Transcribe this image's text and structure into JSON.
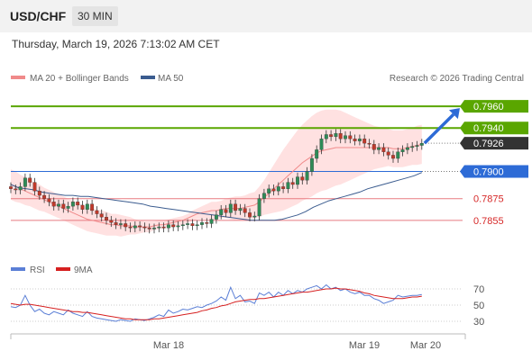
{
  "header": {
    "symbol": "USD/CHF",
    "timeframe": "30 MIN"
  },
  "datetime": "Thursday, March 19, 2026 7:13:02 AM CET",
  "legend": {
    "bb": "MA 20 + Bollinger Bands",
    "ma50": "MA 50",
    "source": "Research © 2026 Trading Central"
  },
  "rsi_legend": {
    "rsi": "RSI",
    "ma": "9MA"
  },
  "colors": {
    "resistance": "#5aa600",
    "support": "#e87a80",
    "pivot": "#2d6bd6",
    "current": "#333333",
    "bull": "#2e8b57",
    "bear": "#c0392b",
    "ma50": "#3b5c8f",
    "ma20": "#f08a8a",
    "band": "#ffd7d7",
    "rsi": "#5b7fd6",
    "rsi_ma": "#d62020"
  },
  "chart_data": {
    "type": "candlestick",
    "levels": [
      {
        "label": "0.7960",
        "value": 0.796,
        "role": "resistance"
      },
      {
        "label": "0.7940",
        "value": 0.794,
        "role": "resistance"
      },
      {
        "label": "0.7926",
        "value": 0.7926,
        "role": "current"
      },
      {
        "label": "0.7900",
        "value": 0.79,
        "role": "pivot"
      },
      {
        "label": "0.7875",
        "value": 0.7875,
        "role": "support"
      },
      {
        "label": "0.7855",
        "value": 0.7855,
        "role": "support"
      }
    ],
    "ylim": [
      0.783,
      0.7975
    ],
    "close": [
      0.7884,
      0.7883,
      0.7886,
      0.7894,
      0.789,
      0.7882,
      0.7878,
      0.7875,
      0.7872,
      0.7868,
      0.787,
      0.7866,
      0.7868,
      0.7872,
      0.7869,
      0.7865,
      0.787,
      0.7864,
      0.7861,
      0.7858,
      0.7855,
      0.7853,
      0.7851,
      0.7852,
      0.7849,
      0.7848,
      0.785,
      0.7849,
      0.7848,
      0.7847,
      0.7848,
      0.7849,
      0.7848,
      0.7851,
      0.7849,
      0.785,
      0.7851,
      0.7852,
      0.785,
      0.7851,
      0.7853,
      0.7852,
      0.7856,
      0.786,
      0.7865,
      0.7862,
      0.787,
      0.7864,
      0.7866,
      0.7862,
      0.7858,
      0.7859,
      0.7875,
      0.788,
      0.7884,
      0.7882,
      0.7886,
      0.7884,
      0.789,
      0.7888,
      0.7895,
      0.7892,
      0.79,
      0.7912,
      0.792,
      0.793,
      0.7934,
      0.7932,
      0.7935,
      0.793,
      0.7933,
      0.793,
      0.7928,
      0.793,
      0.7926,
      0.7925,
      0.792,
      0.7922,
      0.7918,
      0.7915,
      0.7912,
      0.7918,
      0.792,
      0.7922,
      0.7923,
      0.7924,
      0.7926
    ],
    "ma50": [
      0.7888,
      0.7885,
      0.7884,
      0.7883,
      0.7881,
      0.788,
      0.7879,
      0.7878,
      0.7878,
      0.7877,
      0.7877,
      0.7876,
      0.7875,
      0.7874,
      0.7873,
      0.7872,
      0.7871,
      0.787,
      0.7868,
      0.7867,
      0.7866,
      0.7865,
      0.7864,
      0.7863,
      0.7862,
      0.7861,
      0.786,
      0.7859,
      0.7858,
      0.7857,
      0.7856,
      0.7855,
      0.7855,
      0.7855,
      0.7855,
      0.7856,
      0.7858,
      0.786,
      0.7863,
      0.7867,
      0.787,
      0.7873,
      0.7875,
      0.7877,
      0.7879,
      0.7881,
      0.7884,
      0.7886,
      0.7888,
      0.789,
      0.7892,
      0.7894,
      0.7896,
      0.7899
    ],
    "ma50_start": 0,
    "ma20": [
      0.7888,
      0.7886,
      0.7884,
      0.7882,
      0.788,
      0.7878,
      0.7876,
      0.7874,
      0.7872,
      0.787,
      0.7868,
      0.7866,
      0.7864,
      0.7862,
      0.786,
      0.7858,
      0.7856,
      0.7855,
      0.7854,
      0.7853,
      0.7852,
      0.7851,
      0.7851,
      0.785,
      0.785,
      0.785,
      0.7849,
      0.7849,
      0.7849,
      0.7849,
      0.785,
      0.7851,
      0.7851,
      0.7852,
      0.7853,
      0.7854,
      0.7855,
      0.7857,
      0.7859,
      0.7861,
      0.7862,
      0.7863,
      0.7864,
      0.7864,
      0.7865,
      0.7866,
      0.7866,
      0.7866,
      0.7866,
      0.7867,
      0.7868,
      0.7869,
      0.7872,
      0.7876,
      0.788,
      0.7884,
      0.7888,
      0.7892,
      0.7896,
      0.79,
      0.7904,
      0.7908,
      0.7911,
      0.7914,
      0.7917,
      0.7919,
      0.792,
      0.7921,
      0.7922,
      0.7922,
      0.7922,
      0.7922,
      0.7922,
      0.7922,
      0.7922,
      0.7922,
      0.7922,
      0.7922,
      0.7922,
      0.7922,
      0.7921,
      0.7921,
      0.7921,
      0.7922,
      0.7923,
      0.7924,
      0.7925
    ],
    "band_width": [
      0.0014,
      0.0014,
      0.0013,
      0.0013,
      0.0012,
      0.0012,
      0.0012,
      0.0011,
      0.0011,
      0.0011,
      0.0011,
      0.0011,
      0.0011,
      0.0011,
      0.0011,
      0.0011,
      0.0011,
      0.0011,
      0.0011,
      0.0011,
      0.0011,
      0.001,
      0.001,
      0.001,
      0.0009,
      0.0008,
      0.0007,
      0.0006,
      0.0005,
      0.0005,
      0.0004,
      0.0004,
      0.0004,
      0.0004,
      0.0004,
      0.0004,
      0.0004,
      0.0004,
      0.0005,
      0.0005,
      0.0006,
      0.0007,
      0.0008,
      0.0008,
      0.0008,
      0.0009,
      0.001,
      0.0011,
      0.0011,
      0.0011,
      0.0012,
      0.0012,
      0.0014,
      0.0016,
      0.0019,
      0.0022,
      0.0025,
      0.0028,
      0.003,
      0.0032,
      0.0034,
      0.0035,
      0.0036,
      0.0037,
      0.0037,
      0.0037,
      0.0037,
      0.0036,
      0.0035,
      0.0034,
      0.0032,
      0.003,
      0.0028,
      0.0026,
      0.0024,
      0.0022,
      0.002,
      0.0019,
      0.0018,
      0.0017,
      0.0017,
      0.0017,
      0.0017,
      0.0017,
      0.0017,
      0.0018,
      0.0018
    ],
    "rsi": [
      48,
      47,
      50,
      62,
      50,
      42,
      45,
      40,
      38,
      42,
      40,
      38,
      44,
      40,
      38,
      36,
      42,
      36,
      34,
      33,
      32,
      31,
      30,
      32,
      31,
      30,
      33,
      32,
      31,
      33,
      35,
      38,
      36,
      44,
      40,
      42,
      45,
      44,
      46,
      48,
      47,
      50,
      52,
      55,
      60,
      56,
      72,
      58,
      62,
      54,
      55,
      52,
      65,
      62,
      66,
      60,
      66,
      62,
      68,
      64,
      68,
      66,
      70,
      72,
      74,
      70,
      75,
      70,
      72,
      68,
      70,
      66,
      64,
      66,
      62,
      62,
      58,
      56,
      52,
      54,
      56,
      62,
      60,
      61,
      62,
      62,
      63
    ],
    "rsi_ma": [
      52,
      51,
      50,
      51,
      51,
      50,
      49,
      48,
      47,
      46,
      45,
      44,
      43,
      42,
      42,
      41,
      41,
      40,
      39,
      38,
      37,
      36,
      35,
      34,
      33,
      33,
      32,
      32,
      32,
      32,
      33,
      33,
      34,
      35,
      36,
      37,
      38,
      39,
      40,
      41,
      43,
      44,
      46,
      47,
      49,
      50,
      52,
      54,
      55,
      56,
      57,
      57,
      58,
      58,
      59,
      60,
      61,
      62,
      63,
      64,
      65,
      66,
      66,
      67,
      68,
      69,
      70,
      70,
      71,
      70,
      70,
      69,
      68,
      67,
      65,
      64,
      62,
      61,
      60,
      59,
      58,
      58,
      58,
      59,
      60,
      60,
      61
    ],
    "rsi_ticks": [
      "70",
      "50",
      "30"
    ],
    "x_labels": [
      "Mar 18",
      "Mar 19",
      "Mar 20"
    ],
    "projection": {
      "from": 0.7926,
      "to": 0.796
    }
  }
}
